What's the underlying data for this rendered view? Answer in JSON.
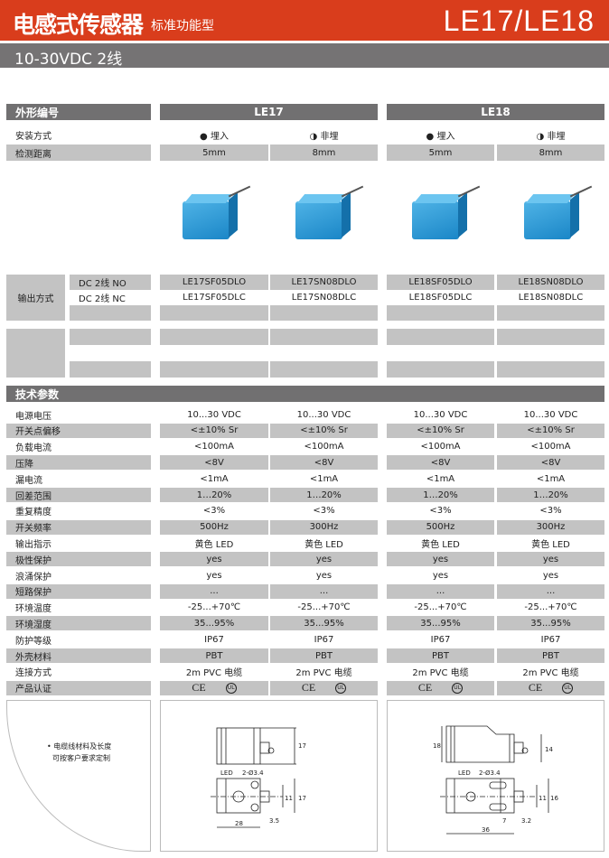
{
  "header": {
    "title": "电感式传感器",
    "subtitle": "标准功能型",
    "models": "LE17/LE18"
  },
  "band": {
    "text": "10-30VDC 2线"
  },
  "shape_row": {
    "label": "外形编号",
    "groups": [
      "LE17",
      "LE18"
    ]
  },
  "mount_row": {
    "label": "安装方式",
    "values": [
      "● 埋入",
      "◑ 非埋",
      "● 埋入",
      "◑ 非埋"
    ]
  },
  "distance_row": {
    "label": "检测距离",
    "values": [
      "5mm",
      "8mm",
      "5mm",
      "8mm"
    ]
  },
  "output": {
    "label": "输出方式",
    "types": [
      "DC 2线  NO",
      "DC 2线  NC"
    ],
    "no": [
      "LE17SF05DLO",
      "LE17SN08DLO",
      "LE18SF05DLO",
      "LE18SN08DLO"
    ],
    "nc": [
      "LE17SF05DLC",
      "LE17SN08DLC",
      "LE18SF05DLC",
      "LE18SN08DLC"
    ]
  },
  "tech": {
    "title": "技术参数",
    "rows": [
      {
        "label": "电源电压",
        "values": [
          "10...30 VDC",
          "10...30 VDC",
          "10...30 VDC",
          "10...30 VDC"
        ]
      },
      {
        "label": "开关点偏移",
        "values": [
          "<±10% Sr",
          "<±10% Sr",
          "<±10% Sr",
          "<±10% Sr"
        ]
      },
      {
        "label": "负载电流",
        "values": [
          "<100mA",
          "<100mA",
          "<100mA",
          "<100mA"
        ]
      },
      {
        "label": "压降",
        "values": [
          "<8V",
          "<8V",
          "<8V",
          "<8V"
        ]
      },
      {
        "label": "漏电流",
        "values": [
          "<1mA",
          "<1mA",
          "<1mA",
          "<1mA"
        ]
      },
      {
        "label": "回差范围",
        "values": [
          "1…20%",
          "1…20%",
          "1…20%",
          "1…20%"
        ]
      },
      {
        "label": "重复精度",
        "values": [
          "<3%",
          "<3%",
          "<3%",
          "<3%"
        ]
      },
      {
        "label": "开关频率",
        "values": [
          "500Hz",
          "300Hz",
          "500Hz",
          "300Hz"
        ]
      },
      {
        "label": "输出指示",
        "values": [
          "黄色  LED",
          "黄色  LED",
          "黄色  LED",
          "黄色  LED"
        ]
      },
      {
        "label": "极性保护",
        "values": [
          "yes",
          "yes",
          "yes",
          "yes"
        ]
      },
      {
        "label": "浪涌保护",
        "values": [
          "yes",
          "yes",
          "yes",
          "yes"
        ]
      },
      {
        "label": "短路保护",
        "values": [
          "...",
          "...",
          "...",
          "..."
        ]
      },
      {
        "label": "环境温度",
        "values": [
          "-25...+70℃",
          "-25...+70℃",
          "-25...+70℃",
          "-25...+70℃"
        ]
      },
      {
        "label": "环境湿度",
        "values": [
          "35...95%",
          "35...95%",
          "35...95%",
          "35...95%"
        ]
      },
      {
        "label": "防护等级",
        "values": [
          "IP67",
          "IP67",
          "IP67",
          "IP67"
        ]
      },
      {
        "label": "外壳材料",
        "values": [
          "PBT",
          "PBT",
          "PBT",
          "PBT"
        ]
      },
      {
        "label": "连接方式",
        "values": [
          "2m PVC 电缆",
          "2m PVC 电缆",
          "2m PVC 电缆",
          "2m PVC 电缆"
        ]
      },
      {
        "label": "产品认证",
        "values": [
          "CE  UL",
          "CE  UL",
          "CE  UL",
          "CE  UL"
        ]
      }
    ]
  },
  "cert": {
    "ce": "CE",
    "ul": "UL"
  },
  "note": {
    "line1": "• 电缆线材料及长度",
    "line2": "可按客户要求定制"
  },
  "drawing_le17": {
    "h_top": "17",
    "led": "LED",
    "hole": "2-Ø3.4",
    "spacing": "11",
    "h_bot": "17",
    "offset": "3.5",
    "length": "28"
  },
  "drawing_le18": {
    "h_top": "18",
    "h_right": "14",
    "led": "LED",
    "hole": "2-Ø3.4",
    "spacing": "11",
    "h_bot": "16",
    "slot": "7",
    "offset": "3.2",
    "length": "36"
  },
  "colors": {
    "header": "#d93d1c",
    "band": "#757374",
    "cell_gray": "#c3c3c3"
  }
}
